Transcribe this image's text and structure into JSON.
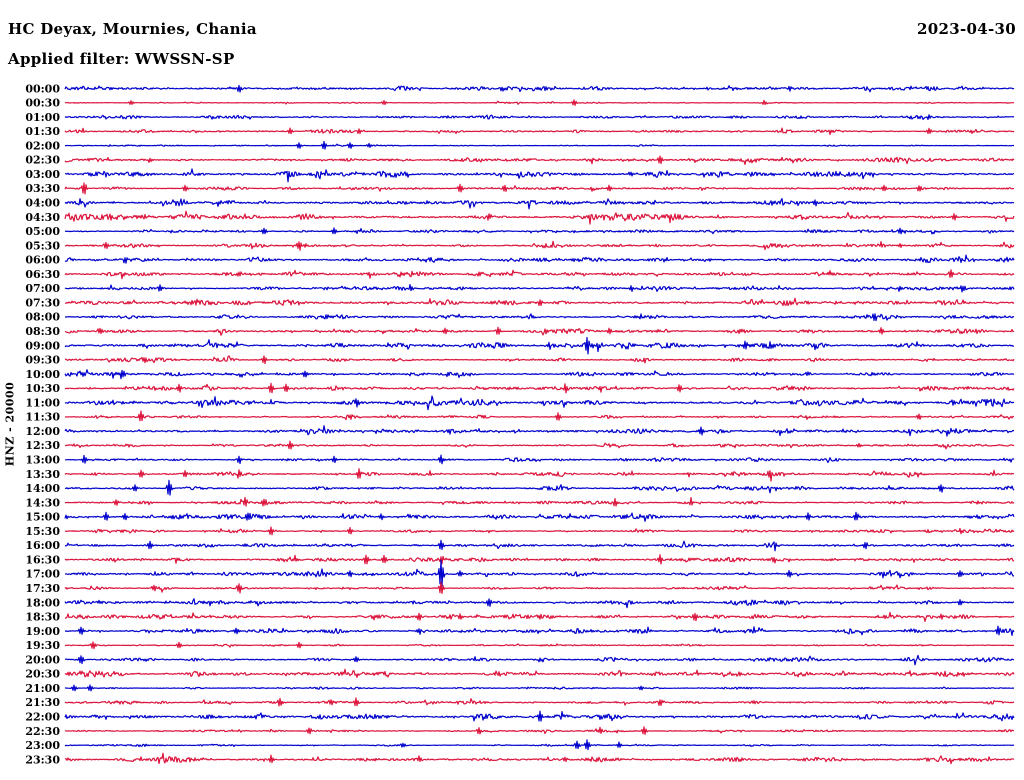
{
  "header": {
    "station": "HC Deyax, Mournies, Chania",
    "date": "2023-04-30",
    "filter_label": "Applied filter: WWSSN-SP"
  },
  "colors": {
    "blue": "#0000CD",
    "red": "#DC143C",
    "background": "#FFFFFF",
    "text": "#000000"
  },
  "chart_data": {
    "type": "line",
    "subtype": "helicorder-dayplot-seismogram",
    "title": "HC Deyax, Mournies, Chania",
    "date": "2023-04-30",
    "filter": "WWSSN-SP",
    "filter_label": "Applied filter: WWSSN-SP",
    "scale_label": "HNZ - 20000",
    "channel": "HNZ",
    "scale_value": 20000,
    "minutes_per_row": 30,
    "legend_position": "none",
    "grid": false,
    "row_color_rule": "rows at :00 are blue, rows at :30 are red",
    "rows": [
      {
        "time": "00:00",
        "color": "blue",
        "noise": 1.1,
        "spikes": [
          [
            5.5,
            3
          ],
          [
            13.8,
            2
          ],
          [
            22.9,
            2
          ]
        ]
      },
      {
        "time": "00:30",
        "color": "red",
        "noise": 0.4,
        "spikes": [
          [
            2.1,
            2
          ],
          [
            10.1,
            2
          ],
          [
            16.1,
            3
          ],
          [
            22.1,
            2
          ]
        ]
      },
      {
        "time": "01:00",
        "color": "blue",
        "noise": 0.9,
        "spikes": [
          [
            27.3,
            2
          ]
        ]
      },
      {
        "time": "01:30",
        "color": "red",
        "noise": 0.8,
        "spikes": [
          [
            7.1,
            3
          ],
          [
            9.3,
            2
          ],
          [
            27.3,
            3
          ]
        ]
      },
      {
        "time": "02:00",
        "color": "blue",
        "noise": 0.3,
        "spikes": [
          [
            7.4,
            3
          ],
          [
            8.2,
            4
          ],
          [
            9.0,
            3
          ],
          [
            9.6,
            2
          ]
        ]
      },
      {
        "time": "02:30",
        "color": "red",
        "noise": 1.1,
        "spikes": [
          [
            2.7,
            2
          ],
          [
            18.8,
            4
          ]
        ]
      },
      {
        "time": "03:00",
        "color": "blue",
        "noise": 1.5,
        "spikes": [
          [
            17.9,
            2
          ]
        ]
      },
      {
        "time": "03:30",
        "color": "red",
        "noise": 0.7,
        "spikes": [
          [
            0.6,
            6
          ],
          [
            3.8,
            3
          ],
          [
            12.5,
            4
          ],
          [
            13.9,
            4
          ],
          [
            17.2,
            3
          ],
          [
            25.9,
            3
          ],
          [
            27.0,
            3
          ]
        ]
      },
      {
        "time": "04:00",
        "color": "blue",
        "noise": 1.4,
        "spikes": [
          [
            23.7,
            3
          ]
        ]
      },
      {
        "time": "04:30",
        "color": "red",
        "noise": 1.5,
        "spikes": [
          [
            1.9,
            3
          ],
          [
            13.4,
            3
          ],
          [
            28.1,
            3
          ]
        ]
      },
      {
        "time": "05:00",
        "color": "blue",
        "noise": 0.8,
        "spikes": [
          [
            6.3,
            3
          ],
          [
            8.5,
            3
          ],
          [
            26.4,
            3
          ]
        ]
      },
      {
        "time": "05:30",
        "color": "red",
        "noise": 1.0,
        "spikes": [
          [
            1.3,
            3
          ],
          [
            7.4,
            4
          ],
          [
            26.4,
            2
          ]
        ]
      },
      {
        "time": "06:00",
        "color": "blue",
        "noise": 1.3,
        "spikes": [
          [
            1.9,
            3
          ],
          [
            29.7,
            3
          ]
        ]
      },
      {
        "time": "06:30",
        "color": "red",
        "noise": 1.2,
        "spikes": [
          [
            5.5,
            3
          ],
          [
            9.6,
            3
          ],
          [
            28.0,
            4
          ]
        ]
      },
      {
        "time": "07:00",
        "color": "blue",
        "noise": 1.0,
        "spikes": [
          [
            3.0,
            3
          ],
          [
            10.9,
            3
          ],
          [
            17.9,
            3
          ],
          [
            26.4,
            2
          ],
          [
            28.4,
            3
          ]
        ]
      },
      {
        "time": "07:30",
        "color": "red",
        "noise": 1.4,
        "spikes": [
          [
            15.0,
            3
          ]
        ]
      },
      {
        "time": "08:00",
        "color": "blue",
        "noise": 1.0,
        "spikes": [
          [
            18.2,
            3
          ],
          [
            25.6,
            4
          ]
        ]
      },
      {
        "time": "08:30",
        "color": "red",
        "noise": 1.2,
        "spikes": [
          [
            1.1,
            3
          ],
          [
            12.0,
            3
          ],
          [
            13.7,
            4
          ],
          [
            17.2,
            3
          ],
          [
            25.8,
            3
          ]
        ]
      },
      {
        "time": "09:00",
        "color": "blue",
        "noise": 1.4,
        "spikes": [
          [
            15.3,
            3
          ],
          [
            16.5,
            10
          ],
          [
            17.7,
            4
          ],
          [
            21.5,
            3
          ]
        ]
      },
      {
        "time": "09:30",
        "color": "red",
        "noise": 0.9,
        "spikes": [
          [
            2.5,
            3
          ],
          [
            6.3,
            4
          ],
          [
            18.3,
            2
          ]
        ]
      },
      {
        "time": "10:00",
        "color": "blue",
        "noise": 0.9,
        "spikes": [
          [
            1.8,
            5
          ],
          [
            7.6,
            3
          ],
          [
            23.5,
            2
          ]
        ]
      },
      {
        "time": "10:30",
        "color": "red",
        "noise": 1.1,
        "spikes": [
          [
            3.6,
            4
          ],
          [
            6.5,
            5
          ],
          [
            7.0,
            4
          ],
          [
            15.8,
            4
          ],
          [
            16.9,
            3
          ],
          [
            19.4,
            4
          ]
        ]
      },
      {
        "time": "11:00",
        "color": "blue",
        "noise": 1.5,
        "spikes": [
          [
            9.2,
            3
          ],
          [
            28.1,
            3
          ]
        ]
      },
      {
        "time": "11:30",
        "color": "red",
        "noise": 0.8,
        "spikes": [
          [
            2.4,
            5
          ],
          [
            9.0,
            3
          ],
          [
            15.6,
            4
          ],
          [
            27.0,
            3
          ]
        ]
      },
      {
        "time": "12:00",
        "color": "blue",
        "noise": 1.2,
        "spikes": [
          [
            12.2,
            3
          ],
          [
            20.1,
            4
          ]
        ]
      },
      {
        "time": "12:30",
        "color": "red",
        "noise": 0.9,
        "spikes": [
          [
            7.1,
            4
          ],
          [
            25.1,
            2
          ]
        ]
      },
      {
        "time": "13:00",
        "color": "blue",
        "noise": 0.9,
        "spikes": [
          [
            0.6,
            4
          ],
          [
            5.5,
            4
          ],
          [
            8.5,
            3
          ],
          [
            11.9,
            4
          ]
        ]
      },
      {
        "time": "13:30",
        "color": "red",
        "noise": 1.1,
        "spikes": [
          [
            2.4,
            4
          ],
          [
            3.8,
            3
          ],
          [
            5.5,
            4
          ],
          [
            9.3,
            5
          ],
          [
            22.3,
            3
          ]
        ]
      },
      {
        "time": "14:00",
        "color": "blue",
        "noise": 1.0,
        "spikes": [
          [
            2.2,
            3
          ],
          [
            3.3,
            8
          ],
          [
            27.7,
            4
          ]
        ]
      },
      {
        "time": "14:30",
        "color": "red",
        "noise": 0.8,
        "spikes": [
          [
            1.6,
            3
          ],
          [
            5.7,
            4
          ],
          [
            6.3,
            4
          ],
          [
            17.4,
            4
          ],
          [
            19.8,
            3
          ]
        ]
      },
      {
        "time": "15:00",
        "color": "blue",
        "noise": 1.2,
        "spikes": [
          [
            1.3,
            4
          ],
          [
            1.9,
            3
          ],
          [
            5.8,
            4
          ],
          [
            10.0,
            3
          ],
          [
            23.5,
            4
          ],
          [
            25.0,
            4
          ]
        ]
      },
      {
        "time": "15:30",
        "color": "red",
        "noise": 0.9,
        "spikes": [
          [
            6.5,
            4
          ],
          [
            9.0,
            3
          ],
          [
            28.3,
            2
          ]
        ]
      },
      {
        "time": "16:00",
        "color": "blue",
        "noise": 1.0,
        "spikes": [
          [
            2.7,
            4
          ],
          [
            11.9,
            5
          ],
          [
            22.4,
            3
          ],
          [
            25.3,
            4
          ]
        ]
      },
      {
        "time": "16:30",
        "color": "red",
        "noise": 1.2,
        "spikes": [
          [
            9.5,
            5
          ],
          [
            10.1,
            4
          ],
          [
            11.9,
            4
          ],
          [
            18.8,
            4
          ],
          [
            22.4,
            3
          ]
        ]
      },
      {
        "time": "17:00",
        "color": "blue",
        "noise": 1.4,
        "spikes": [
          [
            9.0,
            3
          ],
          [
            11.9,
            14
          ],
          [
            12.5,
            3
          ],
          [
            22.9,
            3
          ],
          [
            28.3,
            3
          ]
        ]
      },
      {
        "time": "17:30",
        "color": "red",
        "noise": 0.8,
        "spikes": [
          [
            2.8,
            3
          ],
          [
            5.5,
            5
          ],
          [
            11.9,
            6
          ]
        ]
      },
      {
        "time": "18:00",
        "color": "blue",
        "noise": 1.2,
        "spikes": [
          [
            13.4,
            4
          ],
          [
            28.3,
            3
          ]
        ]
      },
      {
        "time": "18:30",
        "color": "red",
        "noise": 1.1,
        "spikes": [
          [
            11.2,
            4
          ],
          [
            12.5,
            3
          ],
          [
            19.9,
            4
          ],
          [
            27.7,
            3
          ]
        ]
      },
      {
        "time": "19:00",
        "color": "blue",
        "noise": 1.3,
        "spikes": [
          [
            0.5,
            4
          ],
          [
            5.4,
            3
          ],
          [
            11.2,
            3
          ],
          [
            29.5,
            4
          ]
        ]
      },
      {
        "time": "19:30",
        "color": "red",
        "noise": 0.5,
        "spikes": [
          [
            0.9,
            4
          ],
          [
            3.6,
            3
          ],
          [
            7.4,
            3
          ]
        ]
      },
      {
        "time": "20:00",
        "color": "blue",
        "noise": 1.0,
        "spikes": [
          [
            0.5,
            4
          ],
          [
            9.2,
            3
          ],
          [
            15.0,
            2
          ]
        ]
      },
      {
        "time": "20:30",
        "color": "red",
        "noise": 1.3,
        "spikes": [
          [
            0.1,
            2
          ]
        ]
      },
      {
        "time": "21:00",
        "color": "blue",
        "noise": 0.5,
        "spikes": [
          [
            0.3,
            3
          ],
          [
            0.8,
            3
          ],
          [
            18.2,
            2
          ]
        ]
      },
      {
        "time": "21:30",
        "color": "red",
        "noise": 0.8,
        "spikes": [
          [
            6.8,
            4
          ],
          [
            8.4,
            3
          ],
          [
            9.2,
            4
          ],
          [
            18.8,
            3
          ]
        ]
      },
      {
        "time": "22:00",
        "color": "blue",
        "noise": 1.4,
        "spikes": [
          [
            15.0,
            5
          ]
        ]
      },
      {
        "time": "22:30",
        "color": "red",
        "noise": 0.5,
        "spikes": [
          [
            7.7,
            3
          ],
          [
            13.1,
            3
          ],
          [
            16.9,
            3
          ],
          [
            18.3,
            4
          ]
        ]
      },
      {
        "time": "23:00",
        "color": "blue",
        "noise": 0.5,
        "spikes": [
          [
            10.7,
            2
          ],
          [
            16.2,
            4
          ],
          [
            16.5,
            5
          ],
          [
            17.5,
            3
          ]
        ]
      },
      {
        "time": "23:30",
        "color": "red",
        "noise": 1.2,
        "spikes": [
          [
            6.5,
            4
          ],
          [
            11.2,
            3
          ],
          [
            15.8,
            3
          ]
        ]
      }
    ]
  }
}
